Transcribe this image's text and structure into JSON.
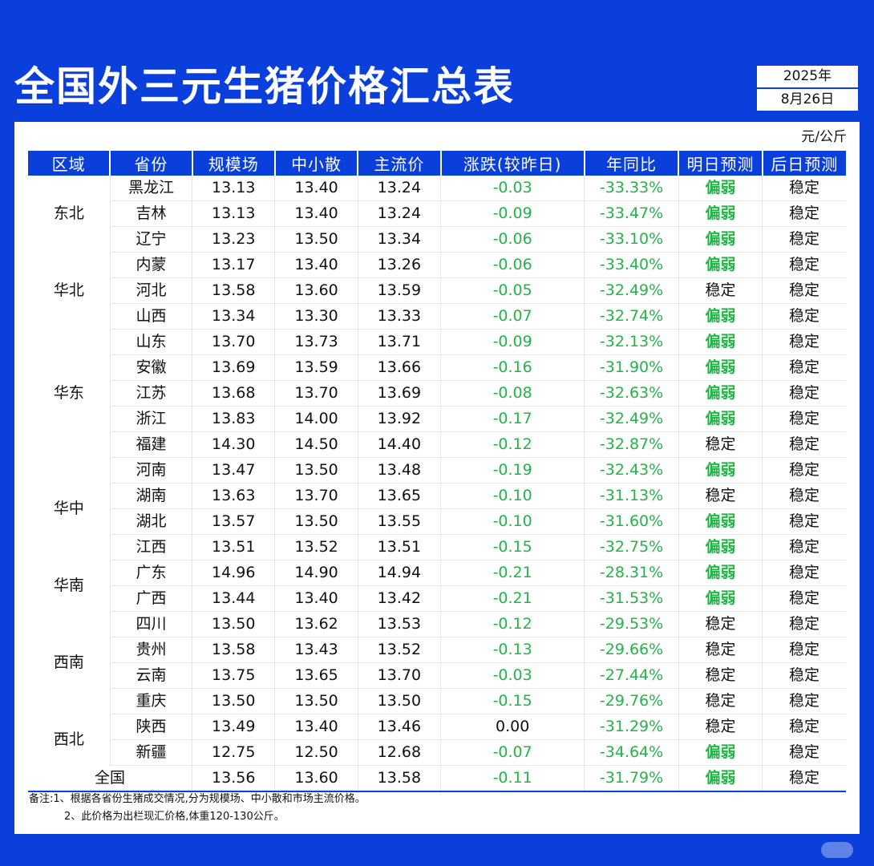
{
  "title": "全国外三元生猪价格汇总表",
  "date": {
    "year": "2025年",
    "day": "8月26日"
  },
  "unit": "元/公斤",
  "headers": [
    "区域",
    "省份",
    "规模场",
    "中小散",
    "主流价",
    "涨跌(较昨日)",
    "年同比",
    "明日预测",
    "后日预测"
  ],
  "rows": [
    {
      "region": "东北",
      "region_span": 3,
      "province": "黑龙江",
      "large": "13.13",
      "small": "13.40",
      "main": "13.24",
      "change": "-0.03",
      "yoy": "-33.33%",
      "tomorrow": "偏弱",
      "after": "稳定"
    },
    {
      "province": "吉林",
      "large": "13.13",
      "small": "13.40",
      "main": "13.24",
      "change": "-0.09",
      "yoy": "-33.47%",
      "tomorrow": "偏弱",
      "after": "稳定"
    },
    {
      "province": "辽宁",
      "large": "13.23",
      "small": "13.50",
      "main": "13.34",
      "change": "-0.06",
      "yoy": "-33.10%",
      "tomorrow": "偏弱",
      "after": "稳定"
    },
    {
      "region": "华北",
      "region_span": 3,
      "province": "内蒙",
      "large": "13.17",
      "small": "13.40",
      "main": "13.26",
      "change": "-0.06",
      "yoy": "-33.40%",
      "tomorrow": "偏弱",
      "after": "稳定"
    },
    {
      "province": "河北",
      "large": "13.58",
      "small": "13.60",
      "main": "13.59",
      "change": "-0.05",
      "yoy": "-32.49%",
      "tomorrow": "稳定",
      "after": "稳定"
    },
    {
      "province": "山西",
      "large": "13.34",
      "small": "13.30",
      "main": "13.33",
      "change": "-0.07",
      "yoy": "-32.74%",
      "tomorrow": "偏弱",
      "after": "稳定"
    },
    {
      "region": "华东",
      "region_span": 5,
      "province": "山东",
      "large": "13.70",
      "small": "13.73",
      "main": "13.71",
      "change": "-0.09",
      "yoy": "-32.13%",
      "tomorrow": "偏弱",
      "after": "稳定"
    },
    {
      "province": "安徽",
      "large": "13.69",
      "small": "13.59",
      "main": "13.66",
      "change": "-0.16",
      "yoy": "-31.90%",
      "tomorrow": "偏弱",
      "after": "稳定"
    },
    {
      "province": "江苏",
      "large": "13.68",
      "small": "13.70",
      "main": "13.69",
      "change": "-0.08",
      "yoy": "-32.63%",
      "tomorrow": "偏弱",
      "after": "稳定"
    },
    {
      "province": "浙江",
      "large": "13.83",
      "small": "14.00",
      "main": "13.92",
      "change": "-0.17",
      "yoy": "-32.49%",
      "tomorrow": "偏弱",
      "after": "稳定"
    },
    {
      "province": "福建",
      "large": "14.30",
      "small": "14.50",
      "main": "14.40",
      "change": "-0.12",
      "yoy": "-32.87%",
      "tomorrow": "稳定",
      "after": "稳定"
    },
    {
      "region": "华中",
      "region_span": 4,
      "province": "河南",
      "large": "13.47",
      "small": "13.50",
      "main": "13.48",
      "change": "-0.19",
      "yoy": "-32.43%",
      "tomorrow": "偏弱",
      "after": "稳定"
    },
    {
      "province": "湖南",
      "large": "13.63",
      "small": "13.70",
      "main": "13.65",
      "change": "-0.10",
      "yoy": "-31.13%",
      "tomorrow": "稳定",
      "after": "稳定"
    },
    {
      "province": "湖北",
      "large": "13.57",
      "small": "13.50",
      "main": "13.55",
      "change": "-0.10",
      "yoy": "-31.60%",
      "tomorrow": "偏弱",
      "after": "稳定"
    },
    {
      "province": "江西",
      "large": "13.51",
      "small": "13.52",
      "main": "13.51",
      "change": "-0.15",
      "yoy": "-32.75%",
      "tomorrow": "偏弱",
      "after": "稳定"
    },
    {
      "region": "华南",
      "region_span": 2,
      "province": "广东",
      "large": "14.96",
      "small": "14.90",
      "main": "14.94",
      "change": "-0.21",
      "yoy": "-28.31%",
      "tomorrow": "偏弱",
      "after": "稳定"
    },
    {
      "province": "广西",
      "large": "13.44",
      "small": "13.40",
      "main": "13.42",
      "change": "-0.21",
      "yoy": "-31.53%",
      "tomorrow": "偏弱",
      "after": "稳定"
    },
    {
      "region": "西南",
      "region_span": 4,
      "province": "四川",
      "large": "13.50",
      "small": "13.62",
      "main": "13.53",
      "change": "-0.12",
      "yoy": "-29.53%",
      "tomorrow": "稳定",
      "after": "稳定"
    },
    {
      "province": "贵州",
      "large": "13.58",
      "small": "13.43",
      "main": "13.52",
      "change": "-0.13",
      "yoy": "-29.66%",
      "tomorrow": "稳定",
      "after": "稳定"
    },
    {
      "province": "云南",
      "large": "13.75",
      "small": "13.65",
      "main": "13.70",
      "change": "-0.03",
      "yoy": "-27.44%",
      "tomorrow": "稳定",
      "after": "稳定"
    },
    {
      "province": "重庆",
      "large": "13.50",
      "small": "13.50",
      "main": "13.50",
      "change": "-0.15",
      "yoy": "-29.76%",
      "tomorrow": "稳定",
      "after": "稳定"
    },
    {
      "region": "西北",
      "region_span": 2,
      "province": "陕西",
      "large": "13.49",
      "small": "13.40",
      "main": "13.46",
      "change": "0.00",
      "yoy": "-31.29%",
      "tomorrow": "稳定",
      "after": "稳定"
    },
    {
      "province": "新疆",
      "large": "12.75",
      "small": "12.50",
      "main": "12.68",
      "change": "-0.07",
      "yoy": "-34.64%",
      "tomorrow": "偏弱",
      "after": "稳定"
    }
  ],
  "national": {
    "label": "全国",
    "large": "13.56",
    "small": "13.60",
    "main": "13.58",
    "change": "-0.11",
    "yoy": "-31.79%",
    "tomorrow": "偏弱",
    "after": "稳定"
  },
  "notes": [
    "备注:1、根据各省份生猪成交情况,分为规模场、中小散和市场主流价格。",
    "2、此价格为出栏现汇价格,体重120-130公斤。"
  ],
  "colors": {
    "brand_blue": "#0a3fdc",
    "down_green": "#25b24a",
    "text": "#111111"
  }
}
